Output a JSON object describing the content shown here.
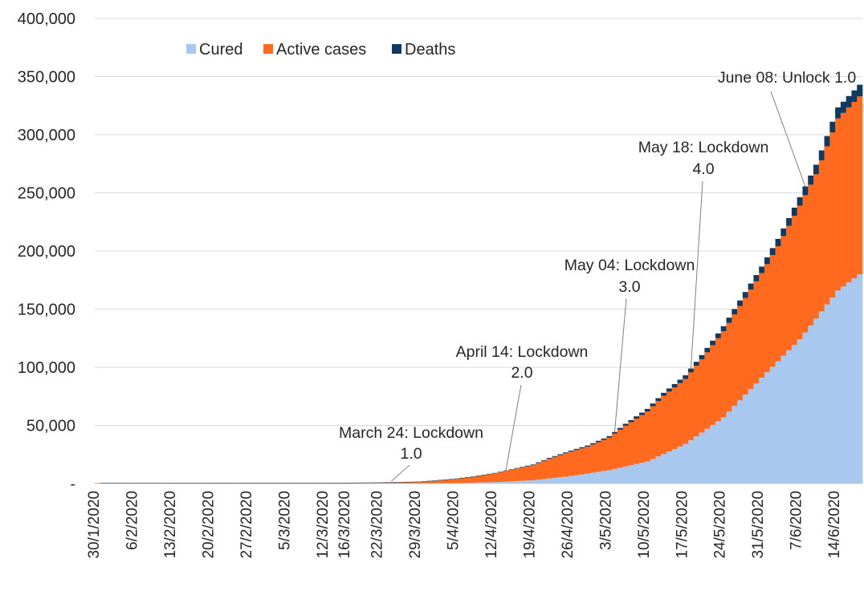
{
  "chart_data": {
    "type": "bar",
    "stacked": true,
    "y_ticks": [
      "-",
      "50,000",
      "100,000",
      "150,000",
      "200,000",
      "250,000",
      "300,000",
      "350,000",
      "400,000"
    ],
    "ylim": [
      0,
      400000
    ],
    "grid": true,
    "legend_position": "top",
    "legend": [
      {
        "name": "Cured",
        "color": "#a9c8ef"
      },
      {
        "name": "Active cases",
        "color": "#ff6a1f"
      },
      {
        "name": "Deaths",
        "color": "#0f3b63"
      }
    ],
    "x_tick_labels": [
      "30/1/2020",
      "6/2/2020",
      "13/2/2020",
      "20/2/2020",
      "27/2/2020",
      "5/3/2020",
      "12/3/2020",
      "16/3/2020",
      "22/3/2020",
      "29/3/2020",
      "5/4/2020",
      "12/4/2020",
      "19/4/2020",
      "26/4/2020",
      "3/5/2020",
      "10/5/2020",
      "17/5/2020",
      "24/5/2020",
      "31/5/2020",
      "7/6/2020",
      "14/6/2020"
    ],
    "x_tick_positions": [
      0,
      7,
      14,
      21,
      28,
      35,
      42,
      46,
      52,
      59,
      66,
      73,
      80,
      87,
      94,
      101,
      108,
      115,
      122,
      129,
      136
    ],
    "series": [
      {
        "name": "Cured",
        "key": "cured",
        "color": "#a9c8ef",
        "points": [
          [
            0,
            0
          ],
          [
            59,
            150
          ],
          [
            66,
            400
          ],
          [
            73,
            1200
          ],
          [
            80,
            2800
          ],
          [
            87,
            6500
          ],
          [
            94,
            11500
          ],
          [
            101,
            19000
          ],
          [
            108,
            34000
          ],
          [
            115,
            57000
          ],
          [
            122,
            91000
          ],
          [
            129,
            124000
          ],
          [
            136,
            166000
          ],
          [
            140,
            180000
          ]
        ]
      },
      {
        "name": "Active cases",
        "key": "active",
        "color": "#ff6a1f",
        "points": [
          [
            0,
            1
          ],
          [
            40,
            60
          ],
          [
            46,
            140
          ],
          [
            52,
            420
          ],
          [
            55,
            700
          ],
          [
            59,
            1100
          ],
          [
            62,
            2000
          ],
          [
            66,
            3500
          ],
          [
            69,
            5000
          ],
          [
            73,
            7500
          ],
          [
            76,
            10000
          ],
          [
            80,
            13000
          ],
          [
            83,
            17000
          ],
          [
            87,
            21000
          ],
          [
            90,
            23000
          ],
          [
            94,
            28000
          ],
          [
            97,
            35000
          ],
          [
            101,
            43000
          ],
          [
            104,
            50000
          ],
          [
            108,
            56000
          ],
          [
            111,
            63000
          ],
          [
            115,
            74000
          ],
          [
            118,
            81000
          ],
          [
            122,
            90000
          ],
          [
            125,
            99000
          ],
          [
            129,
            115000
          ],
          [
            132,
            124000
          ],
          [
            136,
            148000
          ],
          [
            140,
            153000
          ]
        ]
      },
      {
        "name": "Deaths",
        "key": "deaths",
        "color": "#0f3b63",
        "points": [
          [
            0,
            0
          ],
          [
            52,
            10
          ],
          [
            59,
            25
          ],
          [
            66,
            80
          ],
          [
            73,
            300
          ],
          [
            80,
            550
          ],
          [
            87,
            850
          ],
          [
            94,
            1300
          ],
          [
            101,
            2200
          ],
          [
            108,
            3100
          ],
          [
            115,
            4300
          ],
          [
            122,
            5600
          ],
          [
            129,
            7200
          ],
          [
            136,
            9500
          ],
          [
            140,
            10000
          ]
        ]
      }
    ],
    "annotations": [
      {
        "line1": "March 24: Lockdown",
        "line2": "1.0",
        "day": 54
      },
      {
        "line1": "April 14: Lockdown",
        "line2": "2.0",
        "day": 75
      },
      {
        "line1": "May 04: Lockdown",
        "line2": "3.0",
        "day": 95
      },
      {
        "line1": "May 18: Lockdown",
        "line2": "4.0",
        "day": 109
      },
      {
        "line1": "June 08: Unlock 1.0",
        "line2": "",
        "day": 130
      }
    ]
  }
}
